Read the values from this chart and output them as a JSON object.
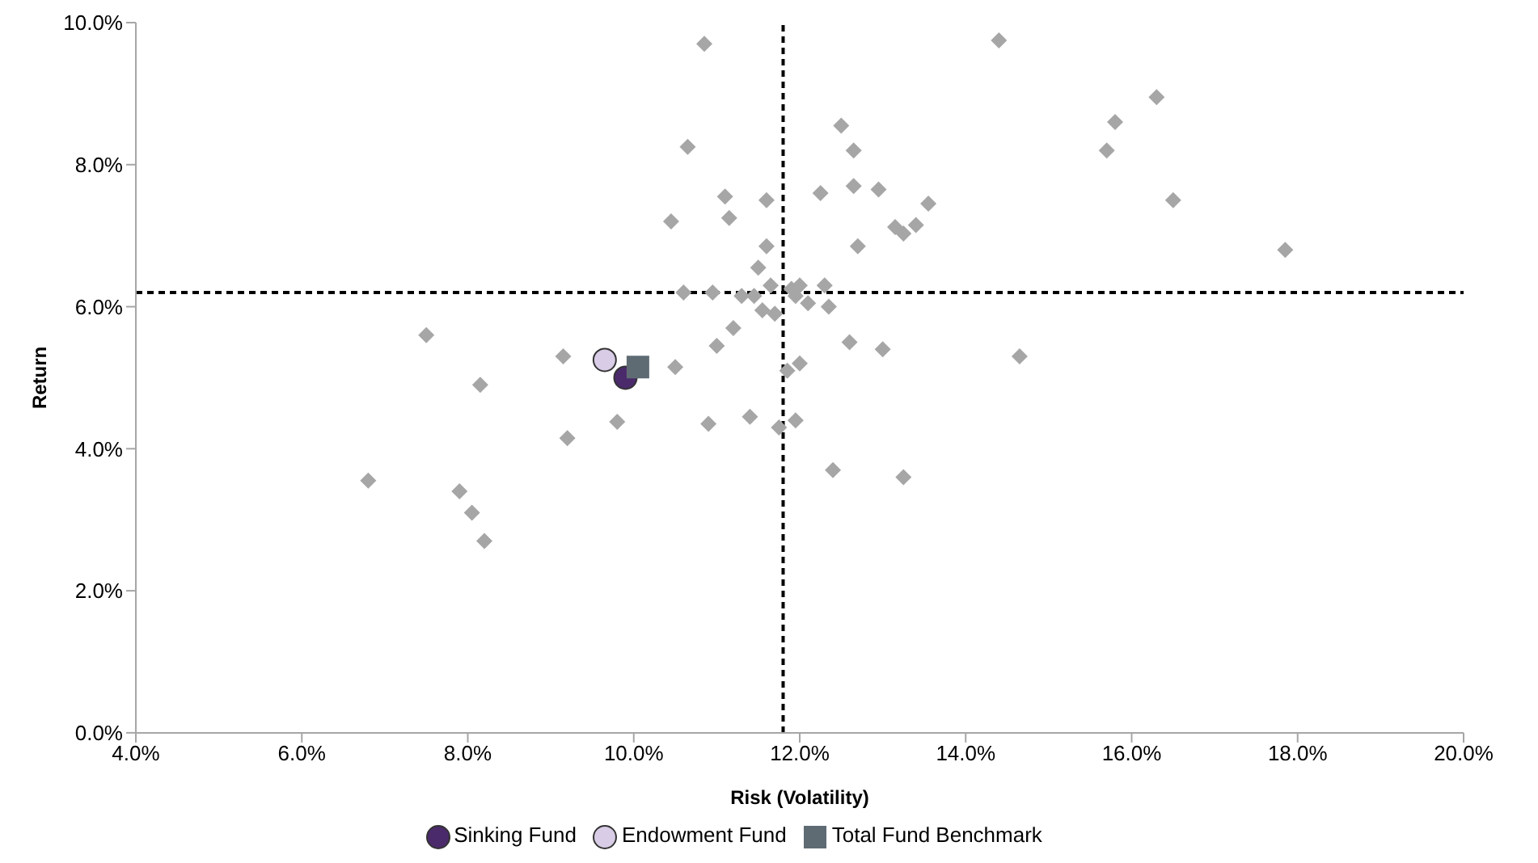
{
  "chart_data": {
    "type": "scatter",
    "xlabel": "Risk (Volatility)",
    "ylabel": "Return",
    "xlim": [
      4,
      20
    ],
    "xticks": [
      {
        "value": 4,
        "label": "4.0%"
      },
      {
        "value": 6,
        "label": "6.0%"
      },
      {
        "value": 8,
        "label": "8.0%"
      },
      {
        "value": 10,
        "label": "10.0%"
      },
      {
        "value": 12,
        "label": "12.0%"
      },
      {
        "value": 14,
        "label": "14.0%"
      },
      {
        "value": 16,
        "label": "16.0%"
      },
      {
        "value": 18,
        "label": "18.0%"
      },
      {
        "value": 20,
        "label": "20.0%"
      }
    ],
    "ylim": [
      0,
      10
    ],
    "yticks": [
      {
        "value": 0,
        "label": "0.0%"
      },
      {
        "value": 2,
        "label": "2.0%"
      },
      {
        "value": 4,
        "label": "4.0%"
      },
      {
        "value": 6,
        "label": "6.0%"
      },
      {
        "value": 8,
        "label": "8.0%"
      },
      {
        "value": 10,
        "label": "10.0%"
      }
    ],
    "grid": false,
    "legend": "bottom",
    "ref_lines": [
      {
        "axis": "x",
        "value": 11.8,
        "color": "#000000",
        "line_style": "dashed"
      },
      {
        "axis": "y",
        "value": 6.2,
        "color": "#000000",
        "line_style": "dashed"
      }
    ],
    "series": [
      {
        "color": "#a6a6a6",
        "marker": "diamond",
        "x": [
          6.8,
          7.5,
          7.9,
          8.05,
          8.15,
          8.2,
          9.15,
          9.2,
          9.8,
          10.45,
          10.5,
          10.6,
          10.65,
          10.85,
          10.9,
          10.95,
          11.0,
          11.1,
          11.15,
          11.2,
          11.3,
          11.4,
          11.45,
          11.5,
          11.55,
          11.6,
          11.6,
          11.65,
          11.7,
          11.75,
          11.85,
          11.9,
          11.95,
          12.0,
          11.95,
          12.0,
          12.1,
          12.25,
          12.3,
          12.35,
          12.4,
          12.5,
          12.6,
          12.65,
          12.65,
          12.7,
          12.95,
          13.0,
          13.15,
          13.25,
          13.25,
          13.4,
          13.55,
          14.4,
          14.65,
          15.7,
          15.8,
          16.3,
          16.5,
          17.85
        ],
        "values": [
          3.55,
          5.6,
          3.4,
          3.1,
          4.9,
          2.7,
          5.3,
          4.15,
          4.38,
          7.2,
          5.15,
          6.2,
          8.25,
          9.7,
          4.35,
          6.2,
          5.45,
          7.55,
          7.25,
          5.7,
          6.15,
          4.45,
          6.15,
          6.55,
          5.95,
          7.5,
          6.85,
          6.3,
          5.9,
          4.3,
          5.1,
          6.25,
          6.15,
          6.3,
          4.4,
          5.2,
          6.05,
          7.6,
          6.3,
          6.0,
          3.7,
          8.55,
          5.5,
          7.7,
          8.2,
          6.85,
          7.65,
          5.4,
          7.12,
          7.03,
          3.6,
          7.15,
          7.45,
          9.75,
          5.3,
          8.2,
          8.6,
          8.95,
          7.5,
          6.8
        ]
      },
      {
        "name": "Sinking Fund",
        "color": "#4b2a6b",
        "marker": "circle",
        "x": [
          9.9
        ],
        "values": [
          5.0
        ]
      },
      {
        "name": "Endowment Fund",
        "color": "#d9cce6",
        "marker": "circle",
        "x": [
          9.65
        ],
        "values": [
          5.25
        ]
      },
      {
        "name": "Total Fund Benchmark",
        "color": "#5f6b73",
        "marker": "square",
        "x": [
          10.05
        ],
        "values": [
          5.15
        ]
      }
    ]
  }
}
